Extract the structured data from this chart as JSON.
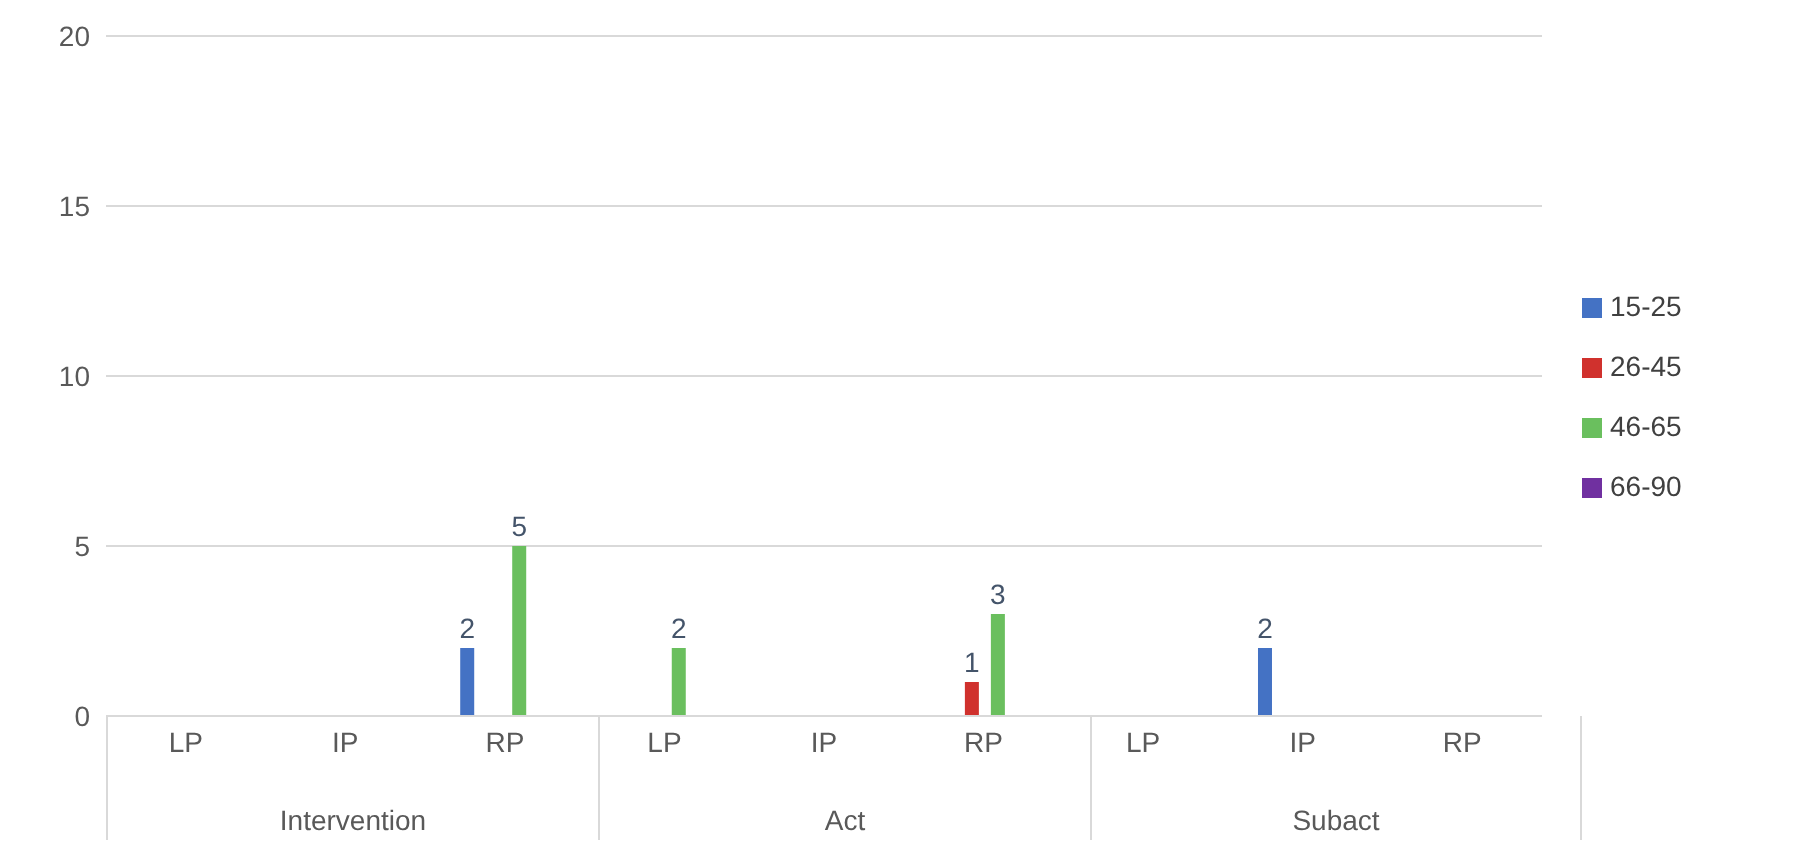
{
  "chart_data": {
    "type": "bar",
    "categories": [
      "LP",
      "IP",
      "RP",
      "LP",
      "IP",
      "RP",
      "LP",
      "IP",
      "RP"
    ],
    "annotations": [
      "Intervention",
      "Act",
      "Subact"
    ],
    "series": [
      {
        "name": "15-25",
        "color": "#4472c4",
        "values": [
          null,
          null,
          2,
          null,
          null,
          null,
          null,
          2,
          null
        ]
      },
      {
        "name": "26-45",
        "color": "#d0312d",
        "values": [
          null,
          null,
          null,
          null,
          null,
          1,
          null,
          null,
          null
        ]
      },
      {
        "name": "46-65",
        "color": "#6abf5e",
        "values": [
          null,
          null,
          5,
          2,
          null,
          3,
          null,
          null,
          null
        ]
      },
      {
        "name": "66-90",
        "color": "#7030a0",
        "values": [
          null,
          null,
          null,
          null,
          null,
          null,
          null,
          null,
          null
        ]
      }
    ],
    "ylim": [
      0,
      20
    ],
    "yticks": [
      0,
      5,
      10,
      15,
      20
    ],
    "grid": "y",
    "legend": "right",
    "data_labels": true
  }
}
